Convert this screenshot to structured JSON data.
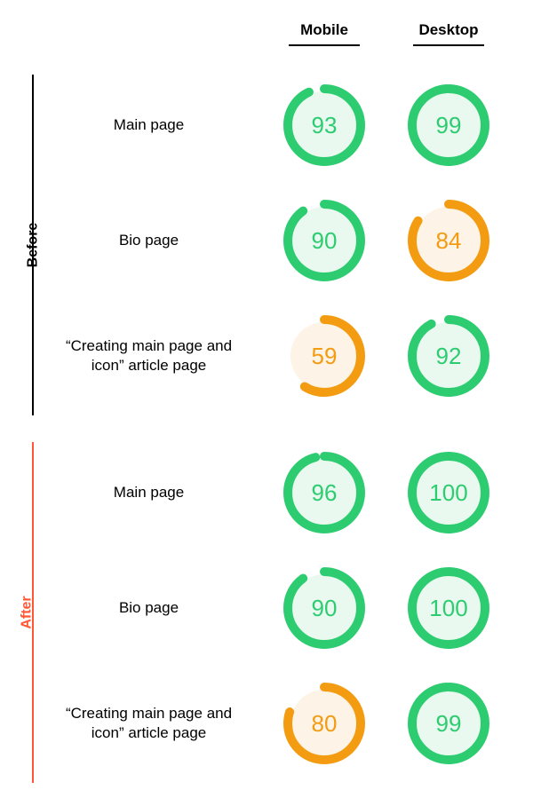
{
  "columns": [
    {
      "label": "Mobile"
    },
    {
      "label": "Desktop"
    }
  ],
  "sections": [
    {
      "id": "before",
      "label": "Before",
      "rule_color": "#000000",
      "label_color": "#000000",
      "rows": [
        {
          "label": "Main page",
          "values": [
            93,
            99
          ]
        },
        {
          "label": "Bio page",
          "values": [
            90,
            84
          ]
        },
        {
          "label": "“Creating main page and icon” article page",
          "values": [
            59,
            92
          ]
        }
      ]
    },
    {
      "id": "after",
      "label": "After",
      "rule_color": "#ff5733",
      "label_color": "#ff5733",
      "rows": [
        {
          "label": "Main page",
          "values": [
            96,
            100
          ]
        },
        {
          "label": "Bio page",
          "values": [
            90,
            100
          ]
        },
        {
          "label": "“Creating main page and icon” article page",
          "values": [
            80,
            99
          ]
        }
      ]
    }
  ],
  "gauge": {
    "size": 96,
    "radius": 41,
    "stroke_width": 10,
    "track_color": "rgba(0,0,0,0)",
    "good": {
      "ring": "#2ecc71",
      "fill": "#e9f9ef",
      "text": "#2ecc71",
      "threshold": 90
    },
    "medium": {
      "ring": "#f39c12",
      "fill": "#fdf3e6",
      "text": "#f39c12",
      "threshold": 50
    }
  },
  "header_underline_color": "#000000",
  "label_fontsize": 17,
  "value_fontsize": 26,
  "background": "#ffffff"
}
